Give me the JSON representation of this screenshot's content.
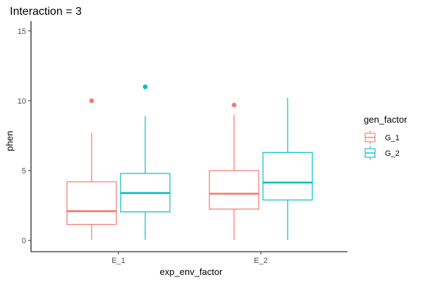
{
  "chart_data": {
    "type": "boxplot",
    "title": "Interaction = 3",
    "xlabel": "exp_env_factor",
    "ylabel": "phen",
    "categories": [
      "E_1",
      "E_2"
    ],
    "ylim": [
      -0.8,
      15.7
    ],
    "yticks": [
      0,
      5,
      10,
      15
    ],
    "grid": false,
    "legend": {
      "title": "gen_factor",
      "position": "right"
    },
    "series": [
      {
        "name": "G_1",
        "color": "#F8766D",
        "boxes": [
          {
            "category": "E_1",
            "whisker_low": 0.05,
            "q1": 1.15,
            "median": 2.1,
            "q3": 4.2,
            "whisker_high": 7.7,
            "outliers": [
              10.0
            ]
          },
          {
            "category": "E_2",
            "whisker_low": 0.05,
            "q1": 2.25,
            "median": 3.35,
            "q3": 5.0,
            "whisker_high": 9.0,
            "outliers": [
              9.7
            ]
          }
        ]
      },
      {
        "name": "G_2",
        "color": "#00BFC4",
        "boxes": [
          {
            "category": "E_1",
            "whisker_low": 0.05,
            "q1": 2.05,
            "median": 3.4,
            "q3": 4.8,
            "whisker_high": 8.9,
            "outliers": [
              11.0
            ]
          },
          {
            "category": "E_2",
            "whisker_low": 0.05,
            "q1": 2.9,
            "median": 4.15,
            "q3": 6.3,
            "whisker_high": 10.2,
            "outliers": []
          }
        ]
      }
    ]
  }
}
